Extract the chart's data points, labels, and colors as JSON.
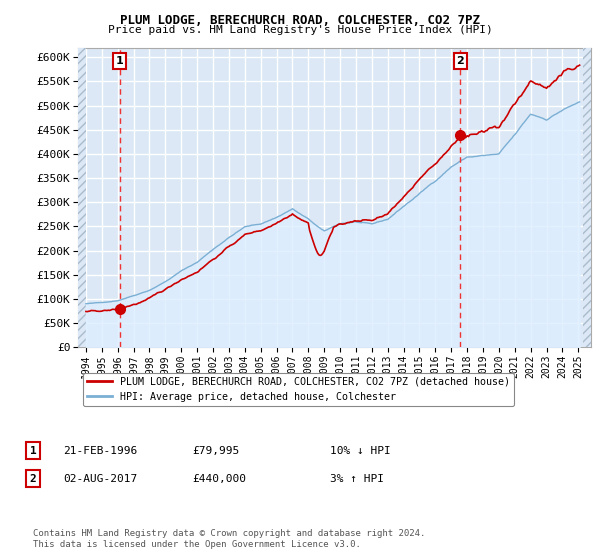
{
  "title": "PLUM LODGE, BERECHURCH ROAD, COLCHESTER, CO2 7PZ",
  "subtitle": "Price paid vs. HM Land Registry's House Price Index (HPI)",
  "xlim_start": 1993.5,
  "xlim_end": 2025.8,
  "ylim_min": 0,
  "ylim_max": 620000,
  "yticks": [
    0,
    50000,
    100000,
    150000,
    200000,
    250000,
    300000,
    350000,
    400000,
    450000,
    500000,
    550000,
    600000
  ],
  "ytick_labels": [
    "£0",
    "£50K",
    "£100K",
    "£150K",
    "£200K",
    "£250K",
    "£300K",
    "£350K",
    "£400K",
    "£450K",
    "£500K",
    "£550K",
    "£600K"
  ],
  "xticks": [
    1994,
    1995,
    1996,
    1997,
    1998,
    1999,
    2000,
    2001,
    2002,
    2003,
    2004,
    2005,
    2006,
    2007,
    2008,
    2009,
    2010,
    2011,
    2012,
    2013,
    2014,
    2015,
    2016,
    2017,
    2018,
    2019,
    2020,
    2021,
    2022,
    2023,
    2024,
    2025
  ],
  "sale1_x": 1996.13,
  "sale1_y": 79995,
  "sale1_label": "1",
  "sale1_date": "21-FEB-1996",
  "sale1_price": "£79,995",
  "sale1_hpi": "10% ↓ HPI",
  "sale2_x": 2017.58,
  "sale2_y": 440000,
  "sale2_label": "2",
  "sale2_date": "02-AUG-2017",
  "sale2_price": "£440,000",
  "sale2_hpi": "3% ↑ HPI",
  "legend_entry1": "PLUM LODGE, BERECHURCH ROAD, COLCHESTER, CO2 7PZ (detached house)",
  "legend_entry2": "HPI: Average price, detached house, Colchester",
  "copyright_text": "Contains HM Land Registry data © Crown copyright and database right 2024.\nThis data is licensed under the Open Government Licence v3.0.",
  "line_color_property": "#cc0000",
  "line_color_hpi": "#7bafd4",
  "fill_color_hpi": "#ddeeff",
  "background_color": "#dce8f5",
  "grid_color": "#ffffff",
  "dashed_line_color": "#ee3333"
}
